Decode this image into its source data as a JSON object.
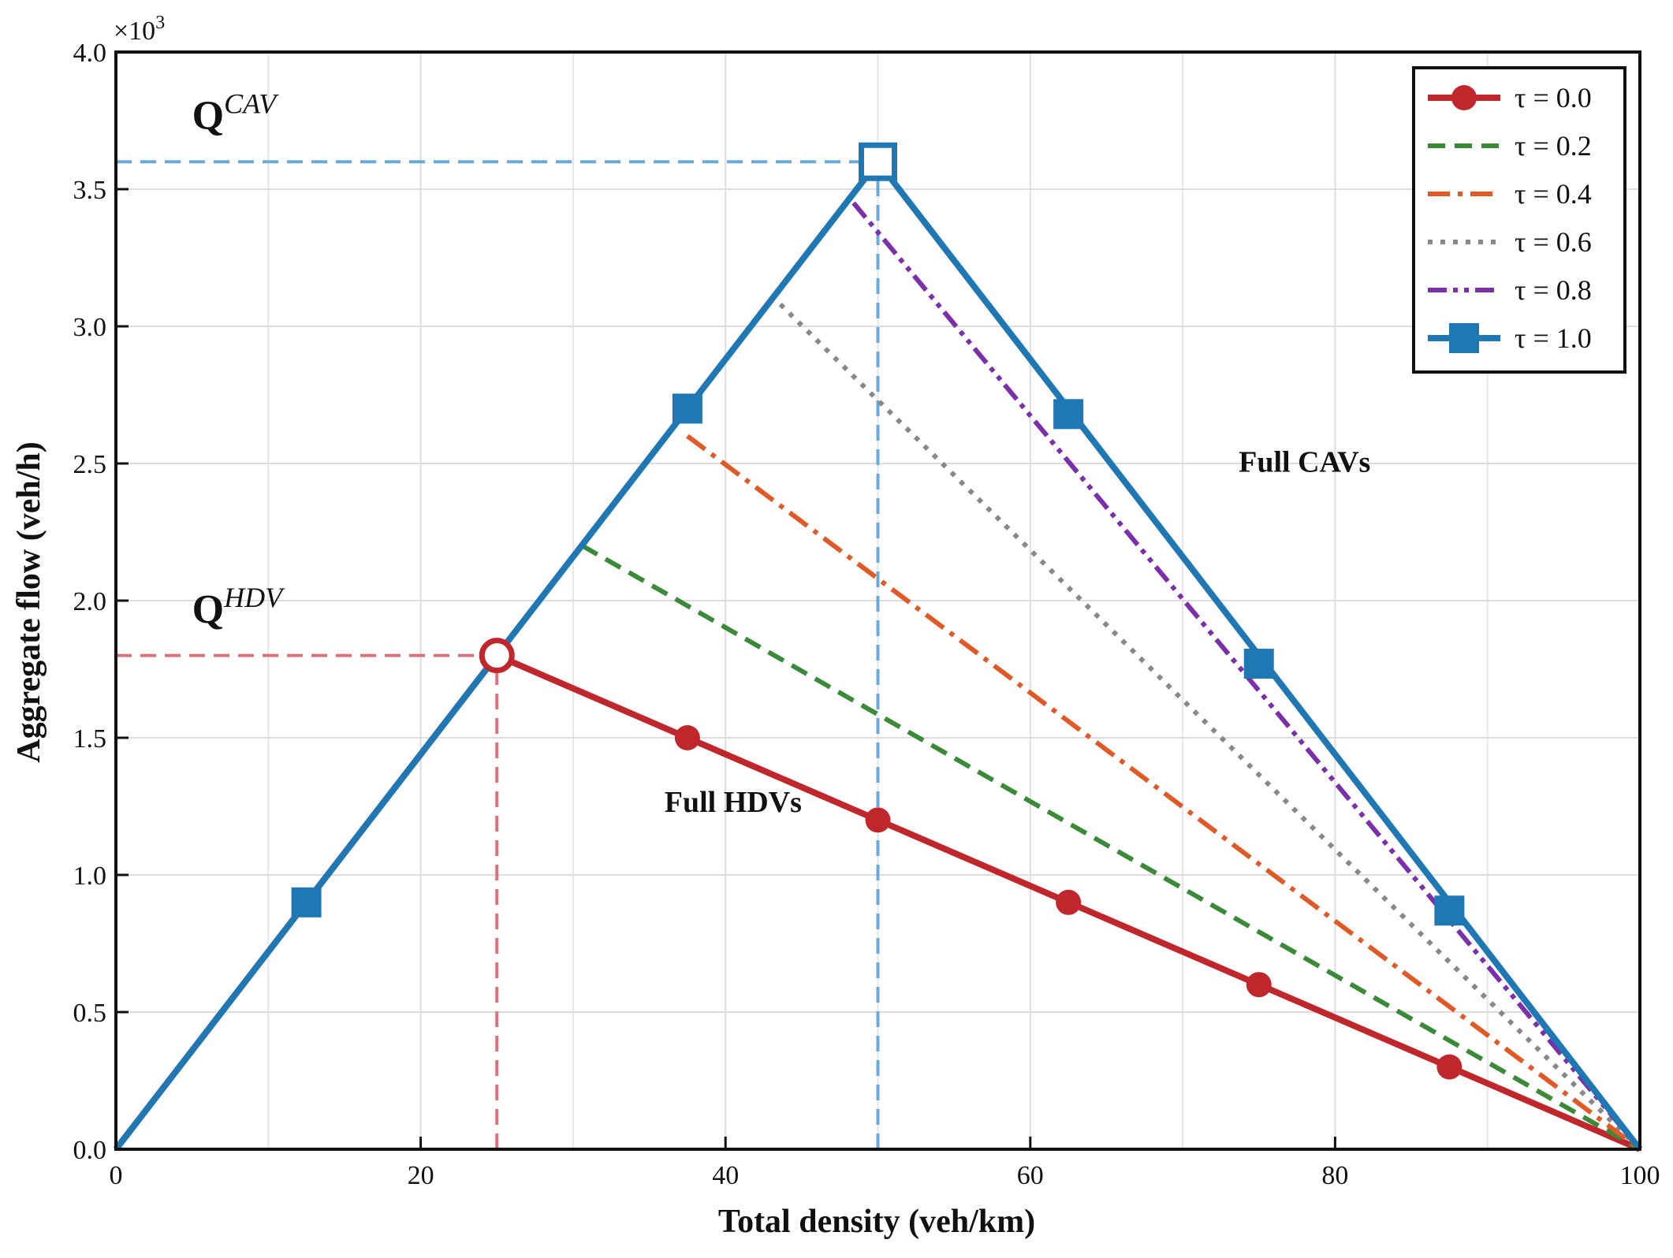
{
  "chart_data": {
    "type": "line",
    "xlabel": "Total density (veh/km)",
    "ylabel": "Aggregate flow (veh/h)",
    "xlim": [
      0,
      100
    ],
    "ylim": [
      0,
      4.0
    ],
    "y_multiplier_label": "×10",
    "y_multiplier_exp": "3",
    "xticks": [
      0,
      20,
      40,
      60,
      80,
      100
    ],
    "xtick_labels": [
      "0",
      "20",
      "40",
      "60",
      "80",
      "100"
    ],
    "yticks": [
      0,
      0.5,
      1.0,
      1.5,
      2.0,
      2.5,
      3.0,
      3.5,
      4.0
    ],
    "ytick_labels": [
      "0.0",
      "0.5",
      "1.0",
      "1.5",
      "2.0",
      "2.5",
      "3.0",
      "3.5",
      "4.0"
    ],
    "grid": true,
    "legend_position": "top-right",
    "series": [
      {
        "name": "τ = 0.0",
        "tau": "0.0",
        "color": "#c0272d",
        "dash": "solid",
        "marker": "circle",
        "x": [
          0,
          25,
          100
        ],
        "y": [
          0,
          1.8,
          0
        ],
        "markers_x": [
          37.5,
          50,
          62.5,
          75,
          87.5
        ],
        "markers_y": [
          1.5,
          1.2,
          0.9,
          0.6,
          0.3
        ]
      },
      {
        "name": "τ = 0.2",
        "tau": "0.2",
        "color": "#3a8a3a",
        "dash": "dashed",
        "marker": "none",
        "x": [
          30.6,
          100
        ],
        "y": [
          2.2,
          0
        ],
        "markers_x": [],
        "markers_y": []
      },
      {
        "name": "τ = 0.4",
        "tau": "0.4",
        "color": "#e05a28",
        "dash": "dashdot",
        "marker": "none",
        "x": [
          37.5,
          100
        ],
        "y": [
          2.6,
          0
        ],
        "markers_x": [],
        "markers_y": []
      },
      {
        "name": "τ = 0.6",
        "tau": "0.6",
        "color": "#888888",
        "dash": "dotted",
        "marker": "none",
        "x": [
          43.6,
          100
        ],
        "y": [
          3.08,
          0
        ],
        "markers_x": [],
        "markers_y": []
      },
      {
        "name": "τ = 0.8",
        "tau": "0.8",
        "color": "#7b2fa8",
        "dash": "dashdotdot",
        "marker": "none",
        "x": [
          48.4,
          100
        ],
        "y": [
          3.45,
          0
        ],
        "markers_x": [],
        "markers_y": []
      },
      {
        "name": "τ = 1.0",
        "tau": "1.0",
        "color": "#1f77b4",
        "dash": "solid",
        "marker": "square",
        "x": [
          0,
          50,
          100
        ],
        "y": [
          0,
          3.6,
          0
        ],
        "markers_x": [
          12.5,
          37.5,
          62.5,
          75,
          87.5
        ],
        "markers_y": [
          0.9,
          2.7,
          2.68,
          1.77,
          0.87
        ]
      }
    ],
    "reference_lines": [
      {
        "name": "q-cav-hline",
        "kind": "h",
        "value": 3.6,
        "from": 0,
        "to": 50,
        "color": "#6aaad8"
      },
      {
        "name": "q-cav-vline",
        "kind": "v",
        "value": 50,
        "from": 0,
        "to": 3.6,
        "color": "#6aaad8"
      },
      {
        "name": "q-hdv-hline",
        "kind": "h",
        "value": 1.8,
        "from": 0,
        "to": 25,
        "color": "#d9737a"
      },
      {
        "name": "q-hdv-vline",
        "kind": "v",
        "value": 25,
        "from": 0,
        "to": 1.8,
        "color": "#d9737a"
      }
    ],
    "hollow_points": [
      {
        "name": "q-hdv-point",
        "x": 25,
        "y": 1.8,
        "shape": "circle",
        "color": "#c0272d"
      },
      {
        "name": "q-cav-point",
        "x": 50,
        "y": 3.6,
        "shape": "square",
        "color": "#1f77b4"
      }
    ],
    "annotations": [
      {
        "name": "full-cavs-annotation",
        "text": "Full CAVs",
        "x": 78,
        "y": 2.47
      },
      {
        "name": "full-hdvs-annotation",
        "text": "Full HDVs",
        "x": 40.5,
        "y": 1.23
      }
    ],
    "q_labels": [
      {
        "name": "q-cav-label",
        "base": "Q",
        "sup": "CAV",
        "x": 5.0,
        "y": 3.72
      },
      {
        "name": "q-hdv-label",
        "base": "Q",
        "sup": "HDV",
        "x": 5.0,
        "y": 1.92
      }
    ]
  }
}
